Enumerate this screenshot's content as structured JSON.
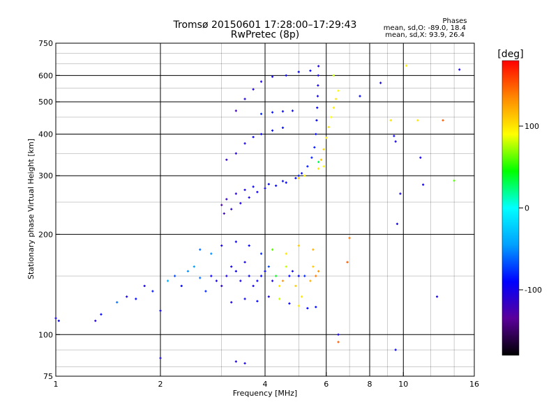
{
  "title": "Tromsø 20150601 17:28:00–17:29:43",
  "subtitle": "RwPretec (8p)",
  "phase_info": {
    "header": "Phases",
    "line_o": "mean, sd,O: -89.0, 18.4",
    "line_x": "mean, sd,X:  93.9, 26.4"
  },
  "colorbar": {
    "label": "[deg]",
    "ticks": [
      "100",
      "0",
      "-100"
    ],
    "range": [
      -180,
      180
    ],
    "stops": [
      "#000000",
      "#5a009a",
      "#0000ff",
      "#00a0ff",
      "#00ffff",
      "#00ff00",
      "#ffff00",
      "#ff8800",
      "#ff0000"
    ]
  },
  "chart_data": {
    "type": "scatter",
    "title": "Tromsø 20150601 17:28:00–17:29:43",
    "subtitle": "RwPretec (8p)",
    "xlabel": "Frequency [MHz]",
    "ylabel": "Stationary phase Virtual Height [km]",
    "xscale": "log",
    "yscale": "log",
    "xlim": [
      1,
      16
    ],
    "ylim": [
      75,
      750
    ],
    "x_ticks": [
      "1",
      "2",
      "4",
      "6",
      "8",
      "10",
      "16"
    ],
    "x_tick_values": [
      1,
      2,
      4,
      6,
      8,
      10,
      16
    ],
    "y_ticks": [
      "750",
      "600",
      "500",
      "400",
      "300",
      "200",
      "100",
      "75"
    ],
    "y_tick_values": [
      750,
      600,
      500,
      400,
      300,
      200,
      100,
      75
    ],
    "grid_x": [
      2,
      4,
      6,
      8,
      10
    ],
    "grid_y": [
      600,
      500,
      400,
      300,
      200,
      100
    ],
    "minor_x": [
      3,
      5,
      7,
      9,
      12,
      14
    ],
    "minor_y": [
      80,
      90,
      150,
      250,
      350,
      450,
      550,
      650,
      700
    ],
    "colorbar_label": "[deg]",
    "color_variable": "phase [deg]",
    "series": [
      {
        "values": [
          [
            3.05,
            231,
            -120
          ],
          [
            3.2,
            238,
            -110
          ],
          [
            3.4,
            248,
            -105
          ],
          [
            3.6,
            258,
            -100
          ],
          [
            3.8,
            268,
            -98
          ],
          [
            4.0,
            275,
            -95
          ],
          [
            4.3,
            280,
            -92
          ],
          [
            4.6,
            286,
            -90
          ],
          [
            4.9,
            295,
            -88
          ],
          [
            5.1,
            305,
            -86
          ],
          [
            5.3,
            320,
            -84
          ],
          [
            5.45,
            340,
            -83
          ],
          [
            5.55,
            365,
            -85
          ],
          [
            5.6,
            400,
            -88
          ],
          [
            5.63,
            440,
            -90
          ],
          [
            5.65,
            480,
            -92
          ],
          [
            5.67,
            520,
            -95
          ],
          [
            5.68,
            560,
            -98
          ],
          [
            5.69,
            600,
            -100
          ],
          [
            5.7,
            640,
            -102
          ],
          [
            3.0,
            245,
            -125
          ],
          [
            3.1,
            255,
            -118
          ],
          [
            3.3,
            265,
            -110
          ],
          [
            3.5,
            272,
            -100
          ],
          [
            3.7,
            278,
            -95
          ],
          [
            4.1,
            283,
            -90
          ],
          [
            4.5,
            289,
            -88
          ],
          [
            5.0,
            300,
            -85
          ],
          [
            3.1,
            335,
            -115
          ],
          [
            3.3,
            350,
            -108
          ],
          [
            3.5,
            375,
            -100
          ],
          [
            3.7,
            392,
            -95
          ],
          [
            3.9,
            400,
            -92
          ],
          [
            4.2,
            410,
            -90
          ],
          [
            4.5,
            418,
            -88
          ],
          [
            3.3,
            470,
            -120
          ],
          [
            3.5,
            510,
            -110
          ],
          [
            3.7,
            545,
            -105
          ],
          [
            3.9,
            575,
            -100
          ],
          [
            4.2,
            595,
            -98
          ],
          [
            4.6,
            600,
            -95
          ],
          [
            5.0,
            615,
            -92
          ],
          [
            5.4,
            620,
            -90
          ],
          [
            3.9,
            460,
            -80
          ],
          [
            4.2,
            465,
            -85
          ],
          [
            4.5,
            468,
            -90
          ],
          [
            4.8,
            470,
            -92
          ],
          [
            5.7,
            315,
            100
          ],
          [
            5.8,
            335,
            110
          ],
          [
            5.9,
            360,
            105
          ],
          [
            6.0,
            390,
            95
          ],
          [
            6.1,
            420,
            100
          ],
          [
            6.2,
            450,
            90
          ],
          [
            6.3,
            480,
            95
          ],
          [
            6.4,
            510,
            100
          ],
          [
            6.5,
            540,
            92
          ],
          [
            6.3,
            600,
            80
          ],
          [
            5.7,
            330,
            30
          ],
          [
            5.9,
            320,
            90
          ],
          [
            5.2,
            300,
            95
          ],
          [
            5.0,
            295,
            110
          ],
          [
            1.0,
            112,
            -100
          ],
          [
            1.02,
            110,
            -95
          ],
          [
            1.3,
            110,
            -110
          ],
          [
            1.35,
            115,
            -90
          ],
          [
            1.5,
            125,
            -60
          ],
          [
            1.6,
            130,
            -100
          ],
          [
            1.7,
            128,
            -90
          ],
          [
            1.8,
            140,
            -100
          ],
          [
            1.9,
            135,
            -85
          ],
          [
            2.0,
            118,
            -95
          ],
          [
            2.1,
            145,
            -40
          ],
          [
            2.2,
            150,
            -70
          ],
          [
            2.3,
            140,
            -90
          ],
          [
            2.4,
            155,
            -50
          ],
          [
            2.5,
            160,
            -45
          ],
          [
            2.6,
            148,
            -60
          ],
          [
            2.7,
            135,
            -80
          ],
          [
            2.8,
            150,
            -95
          ],
          [
            2.9,
            145,
            -100
          ],
          [
            3.0,
            140,
            -110
          ],
          [
            3.1,
            150,
            -105
          ],
          [
            3.2,
            160,
            -100
          ],
          [
            3.3,
            155,
            -95
          ],
          [
            3.4,
            145,
            -100
          ],
          [
            3.5,
            165,
            -98
          ],
          [
            3.6,
            150,
            -95
          ],
          [
            3.7,
            140,
            -100
          ],
          [
            3.8,
            145,
            -95
          ],
          [
            3.9,
            150,
            -92
          ],
          [
            4.0,
            155,
            -90
          ],
          [
            4.1,
            160,
            -70
          ],
          [
            4.2,
            145,
            -100
          ],
          [
            4.3,
            150,
            40
          ],
          [
            4.4,
            140,
            100
          ],
          [
            4.5,
            145,
            130
          ],
          [
            4.6,
            160,
            80
          ],
          [
            4.7,
            150,
            -90
          ],
          [
            4.8,
            155,
            -95
          ],
          [
            4.9,
            140,
            110
          ],
          [
            5.0,
            150,
            -92
          ],
          [
            5.1,
            130,
            100
          ],
          [
            5.2,
            150,
            -80
          ],
          [
            5.4,
            145,
            120
          ],
          [
            5.5,
            160,
            110
          ],
          [
            5.6,
            150,
            140
          ],
          [
            5.7,
            155,
            130
          ],
          [
            3.2,
            125,
            -100
          ],
          [
            3.5,
            128,
            -95
          ],
          [
            3.8,
            126,
            -90
          ],
          [
            4.1,
            130,
            -100
          ],
          [
            4.4,
            128,
            80
          ],
          [
            4.7,
            124,
            -95
          ],
          [
            5.0,
            122,
            100
          ],
          [
            5.3,
            120,
            -90
          ],
          [
            5.6,
            121,
            -88
          ],
          [
            2.6,
            180,
            -60
          ],
          [
            2.8,
            175,
            -50
          ],
          [
            3.0,
            185,
            -100
          ],
          [
            3.3,
            190,
            -95
          ],
          [
            3.6,
            185,
            -90
          ],
          [
            3.9,
            175,
            -80
          ],
          [
            4.2,
            180,
            60
          ],
          [
            4.6,
            175,
            100
          ],
          [
            5.0,
            185,
            110
          ],
          [
            5.5,
            180,
            120
          ],
          [
            2.0,
            85,
            -100
          ],
          [
            3.3,
            83,
            -105
          ],
          [
            3.5,
            82,
            -100
          ],
          [
            9.5,
            90,
            -95
          ],
          [
            9.6,
            215,
            -100
          ],
          [
            9.8,
            265,
            -100
          ],
          [
            9.5,
            380,
            -100
          ],
          [
            9.4,
            395,
            -95
          ],
          [
            11.2,
            340,
            -100
          ],
          [
            11.4,
            282,
            -98
          ],
          [
            12.5,
            130,
            -100
          ],
          [
            11.0,
            440,
            100
          ],
          [
            14.5,
            625,
            -100
          ],
          [
            13.0,
            440,
            150
          ],
          [
            7.5,
            520,
            -90
          ],
          [
            7.0,
            195,
            140
          ],
          [
            6.5,
            95,
            150
          ],
          [
            6.5,
            100,
            -100
          ],
          [
            6.9,
            165,
            150
          ],
          [
            8.6,
            570,
            -100
          ],
          [
            9.2,
            440,
            100
          ],
          [
            10.2,
            642,
            95
          ],
          [
            14.0,
            290,
            60
          ]
        ]
      }
    ]
  }
}
